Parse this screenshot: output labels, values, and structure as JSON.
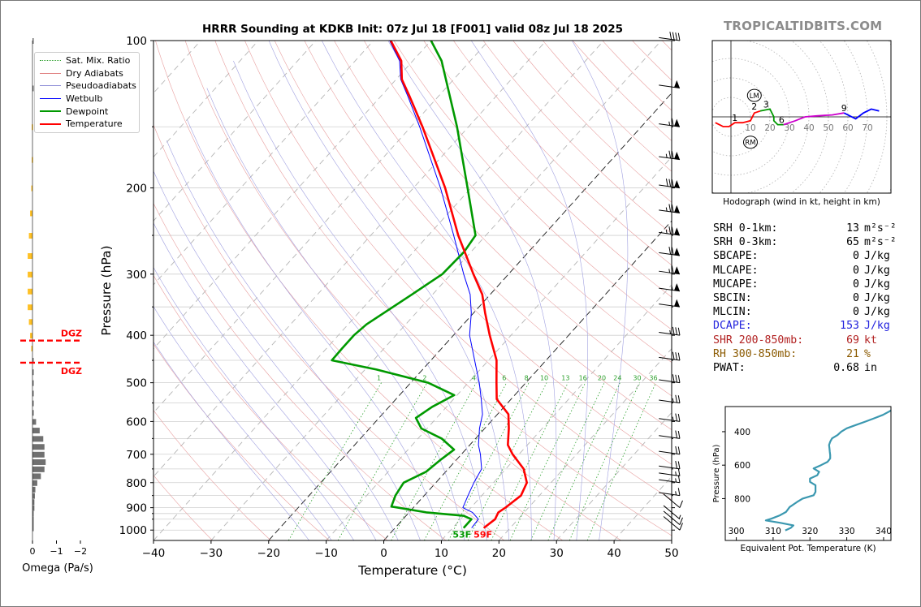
{
  "title": "HRRR Sounding at KDKB Init: 07z Jul 18 [F001] valid 08z Jul 18 2025",
  "brand": "TROPICALTIDBITS.COM",
  "legend": [
    {
      "label": "Sat. Mix. Ratio",
      "color": "#2ca02c",
      "style": "dotted"
    },
    {
      "label": "Dry Adiabats",
      "color": "#e08080",
      "style": "solid"
    },
    {
      "label": "Pseudoadiabats",
      "color": "#9090d8",
      "style": "solid"
    },
    {
      "label": "Wetbulb",
      "color": "#0000ff",
      "style": "solid"
    },
    {
      "label": "Dewpoint",
      "color": "#009900",
      "style": "solid"
    },
    {
      "label": "Temperature",
      "color": "#ff0000",
      "style": "solid"
    }
  ],
  "stats": [
    {
      "label": "SRH 0-1km:",
      "value": "13",
      "unit": "m²s⁻²",
      "color": "#000000"
    },
    {
      "label": "SRH 0-3km:",
      "value": "65",
      "unit": "m²s⁻²",
      "color": "#000000"
    },
    {
      "label": "SBCAPE:",
      "value": "0",
      "unit": "J/kg",
      "color": "#000000"
    },
    {
      "label": "MLCAPE:",
      "value": "0",
      "unit": "J/kg",
      "color": "#000000"
    },
    {
      "label": "MUCAPE:",
      "value": "0",
      "unit": "J/kg",
      "color": "#000000"
    },
    {
      "label": "SBCIN:",
      "value": "0",
      "unit": "J/kg",
      "color": "#000000"
    },
    {
      "label": "MLCIN:",
      "value": "0",
      "unit": "J/kg",
      "color": "#000000"
    },
    {
      "label": "DCAPE:",
      "value": "153",
      "unit": "J/kg",
      "color": "#2222dd"
    },
    {
      "label": "SHR 200-850mb:",
      "value": "69",
      "unit": "kt",
      "color": "#b22222"
    },
    {
      "label": "RH 300-850mb:",
      "value": "21",
      "unit": "%",
      "color": "#8b5a00"
    },
    {
      "label": "PWAT:",
      "value": "0.68",
      "unit": "in",
      "color": "#000000"
    }
  ],
  "chart_data": [
    {
      "type": "line",
      "title": "HRRR Sounding at KDKB Init: 07z Jul 18 [F001] valid 08z Jul 18 2025",
      "xlabel": "Temperature (°C)",
      "ylabel": "Pressure (hPa)",
      "xlim": [
        -40,
        50
      ],
      "ylim": [
        1050,
        100
      ],
      "y_scale": "log",
      "x_ticks": [
        "−40",
        "−30",
        "−20",
        "−10",
        "0",
        "10",
        "20",
        "30",
        "40",
        "50"
      ],
      "y_ticks": [
        "100",
        "200",
        "300",
        "400",
        "500",
        "600",
        "700",
        "800",
        "900",
        "1000"
      ],
      "mixing_ratio_labels": [
        "1",
        "2",
        "4",
        "6",
        "8",
        "10",
        "13",
        "16",
        "20",
        "24",
        "30",
        "36"
      ],
      "surface_labels": {
        "dewpoint": "53F",
        "temperature": "59F"
      },
      "series": [
        {
          "name": "Temperature",
          "pressure": [
            990,
            950,
            920,
            900,
            850,
            800,
            750,
            700,
            670,
            620,
            580,
            540,
            500,
            450,
            400,
            360,
            330,
            300,
            250,
            200,
            150,
            130,
            120,
            110,
            100
          ],
          "value": [
            15.4,
            16,
            15.5,
            16,
            16.8,
            15.8,
            13.1,
            8.9,
            6.6,
            4.2,
            1.9,
            -2.5,
            -5.1,
            -8.6,
            -13.7,
            -18,
            -21.4,
            -26.1,
            -34.8,
            -44.5,
            -58,
            -65,
            -69,
            -72,
            -77
          ]
        },
        {
          "name": "Dewpoint",
          "pressure": [
            990,
            950,
            935,
            920,
            895,
            850,
            800,
            760,
            720,
            685,
            650,
            620,
            590,
            560,
            530,
            500,
            470,
            450,
            425,
            400,
            380,
            330,
            300,
            270,
            250,
            200,
            150,
            130,
            110,
            100
          ],
          "value": [
            11.9,
            11.9,
            10,
            3,
            -4,
            -5,
            -5.6,
            -3.4,
            -2.8,
            -2,
            -5.9,
            -11,
            -13.6,
            -12.5,
            -10.5,
            -17,
            -28,
            -37.2,
            -37.3,
            -37.3,
            -36.8,
            -33.6,
            -31.5,
            -31.2,
            -31.8,
            -40.6,
            -52,
            -58,
            -65,
            -70
          ]
        },
        {
          "name": "Wetbulb",
          "pressure": [
            990,
            950,
            920,
            900,
            850,
            800,
            750,
            700,
            670,
            620,
            580,
            540,
            500,
            450,
            400,
            360,
            330,
            300,
            250,
            200,
            150,
            130,
            120,
            110,
            100
          ],
          "value": [
            13.3,
            13.1,
            11,
            8.6,
            7.6,
            6.6,
            5.8,
            3.3,
            1.5,
            -0.9,
            -2.6,
            -5.2,
            -8.1,
            -12.4,
            -17.2,
            -20.4,
            -23.5,
            -27.8,
            -35.6,
            -45.3,
            -58.5,
            -65.3,
            -69.2,
            -72.3,
            -77.2
          ]
        }
      ],
      "wind_barbs_kt": [
        {
          "pressure": 1000,
          "speed": 10
        },
        {
          "pressure": 975,
          "speed": 10
        },
        {
          "pressure": 950,
          "speed": 5
        },
        {
          "pressure": 900,
          "speed": 10
        },
        {
          "pressure": 850,
          "speed": 15
        },
        {
          "pressure": 800,
          "speed": 15
        },
        {
          "pressure": 775,
          "speed": 15
        },
        {
          "pressure": 750,
          "speed": 20
        },
        {
          "pressure": 700,
          "speed": 20
        },
        {
          "pressure": 650,
          "speed": 20
        },
        {
          "pressure": 600,
          "speed": 25
        },
        {
          "pressure": 550,
          "speed": 25
        },
        {
          "pressure": 500,
          "speed": 30
        },
        {
          "pressure": 450,
          "speed": 30
        },
        {
          "pressure": 400,
          "speed": 35
        },
        {
          "pressure": 350,
          "speed": 50
        },
        {
          "pressure": 325,
          "speed": 55
        },
        {
          "pressure": 300,
          "speed": 65
        },
        {
          "pressure": 275,
          "speed": 70
        },
        {
          "pressure": 250,
          "speed": 75
        },
        {
          "pressure": 225,
          "speed": 75
        },
        {
          "pressure": 200,
          "speed": 80
        },
        {
          "pressure": 175,
          "speed": 75
        },
        {
          "pressure": 150,
          "speed": 65
        },
        {
          "pressure": 125,
          "speed": 50
        },
        {
          "pressure": 100,
          "speed": 40
        }
      ]
    },
    {
      "type": "bar",
      "xlabel": "Omega (Pa/s)",
      "xlim": [
        1,
        -3
      ],
      "x_ticks": [
        "0",
        "−1",
        "−2"
      ],
      "dgz_label": "DGZ",
      "dgz_pressure": [
        410,
        455
      ],
      "pressure": [
        990,
        970,
        950,
        925,
        900,
        875,
        850,
        825,
        800,
        775,
        750,
        725,
        700,
        675,
        650,
        625,
        600,
        575,
        550,
        525,
        500,
        475,
        450,
        425,
        400,
        375,
        350,
        325,
        300,
        275,
        250,
        225,
        200,
        175,
        150,
        125,
        100
      ],
      "values": [
        -0.05,
        -0.05,
        -0.05,
        -0.05,
        -0.08,
        -0.08,
        -0.1,
        -0.12,
        -0.2,
        -0.35,
        -0.5,
        -0.55,
        -0.5,
        -0.5,
        -0.45,
        -0.3,
        -0.15,
        -0.05,
        -0.05,
        -0.05,
        -0.05,
        -0.05,
        -0.05,
        0.05,
        0.1,
        0.15,
        0.2,
        0.2,
        0.2,
        0.2,
        0.15,
        0.1,
        0.05,
        0.03,
        0.03,
        -0.03,
        -0.03
      ],
      "colors": {
        "up": "#ffc125",
        "down": "#707070"
      }
    },
    {
      "type": "line",
      "title": "Hodograph (wind in kt, height in km)",
      "rings_kt": [
        "10",
        "20",
        "30",
        "40",
        "50",
        "60",
        "70"
      ],
      "storm_motion_labels": [
        "LM",
        "RM"
      ],
      "height_labels": [
        {
          "km": "1",
          "u": 2,
          "v": -3
        },
        {
          "km": "2",
          "u": 12,
          "v": 3
        },
        {
          "km": "3",
          "u": 18,
          "v": 4
        },
        {
          "km": "6",
          "u": 26,
          "v": -4
        },
        {
          "km": "9",
          "u": 58,
          "v": 2
        }
      ],
      "segments": [
        {
          "color": "#ff0000",
          "points": [
            [
              -8,
              -3
            ],
            [
              -6,
              -4
            ],
            [
              -4,
              -5
            ],
            [
              -1,
              -5
            ],
            [
              2,
              -3
            ],
            [
              6,
              -3
            ],
            [
              10,
              -2
            ],
            [
              12,
              2
            ],
            [
              15,
              3
            ]
          ]
        },
        {
          "color": "#009900",
          "points": [
            [
              15,
              3
            ],
            [
              20,
              4
            ],
            [
              22,
              0
            ],
            [
              22,
              -2
            ],
            [
              24,
              -4
            ],
            [
              27,
              -4
            ]
          ]
        },
        {
          "color": "#cc00cc",
          "points": [
            [
              27,
              -4
            ],
            [
              33,
              -2
            ],
            [
              38,
              0
            ],
            [
              44,
              0.5
            ],
            [
              52,
              1
            ],
            [
              58,
              2
            ]
          ]
        },
        {
          "color": "#0000ff",
          "points": [
            [
              58,
              2
            ],
            [
              64,
              -1
            ],
            [
              68,
              2
            ],
            [
              72,
              4
            ],
            [
              76,
              3
            ]
          ]
        }
      ]
    },
    {
      "type": "line",
      "xlabel": "Equivalent Pot. Temperature (K)",
      "ylabel": "Pressure (hPa)",
      "xlim": [
        297,
        342
      ],
      "x_ticks": [
        "300",
        "310",
        "320",
        "330",
        "340"
      ],
      "y_ticks": [
        "400",
        "600",
        "800"
      ],
      "ylim": [
        1050,
        250
      ],
      "series": [
        {
          "name": "Theta-E",
          "color": "#3b98b0",
          "pressure": [
            990,
            975,
            960,
            945,
            930,
            920,
            900,
            880,
            850,
            820,
            800,
            780,
            760,
            740,
            720,
            700,
            680,
            660,
            640,
            620,
            600,
            580,
            560,
            540,
            520,
            500,
            480,
            460,
            440,
            420,
            400,
            380,
            360,
            340,
            320,
            300,
            280,
            260
          ],
          "value": [
            313.3,
            314.8,
            315.5,
            312,
            308,
            309.5,
            311.8,
            313.5,
            314.5,
            316.5,
            318,
            321,
            321.5,
            321.5,
            321.5,
            320,
            320,
            322,
            322.5,
            321,
            323,
            324.8,
            325.5,
            325.5,
            325.4,
            325.3,
            325.2,
            325.5,
            326,
            327.5,
            328.5,
            330,
            332.5,
            335,
            337.5,
            339.8,
            341.5,
            343
          ]
        }
      ]
    }
  ]
}
